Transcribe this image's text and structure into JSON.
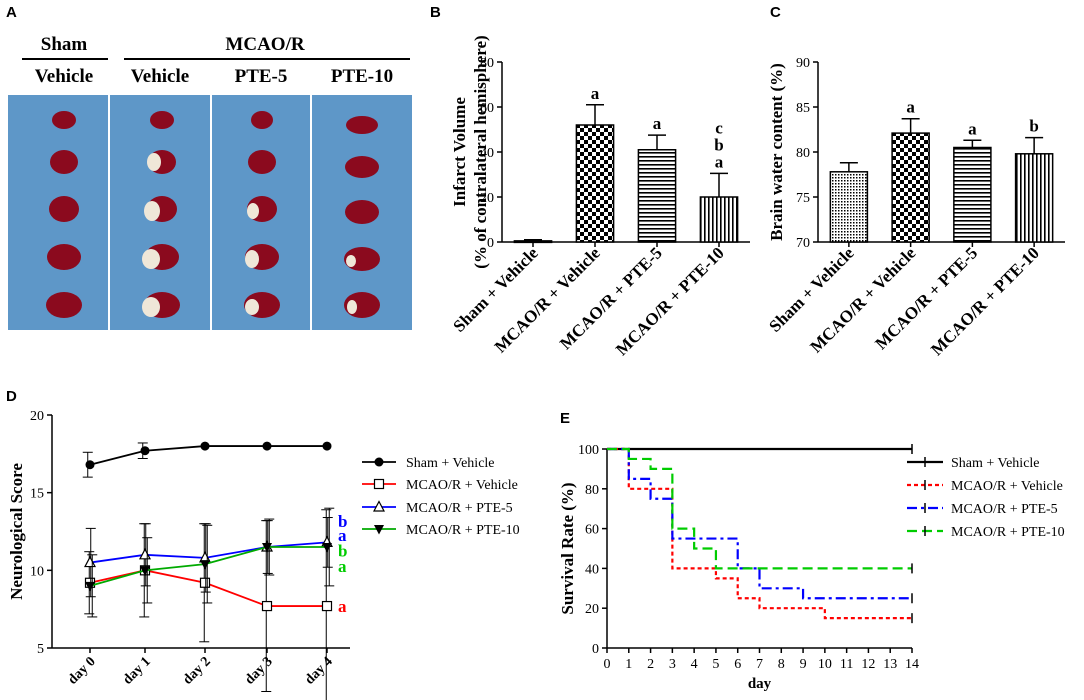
{
  "panel_labels": {
    "a": "A",
    "b": "B",
    "c": "C",
    "d": "D",
    "e": "E"
  },
  "panel_a": {
    "group_sham": "Sham",
    "group_mcao": "MCAO/R",
    "col_labels": [
      "Vehicle",
      "Vehicle",
      "PTE-5",
      "PTE-10"
    ]
  },
  "colors": {
    "black": "#000000",
    "red": "#ff0000",
    "blue": "#0000ff",
    "green": "#00cc00",
    "photo_bg": "#5e97c8",
    "brain": "#8b0a1e"
  },
  "chart_data": [
    {
      "id": "B",
      "type": "bar",
      "ylabel": "Infarct Volume",
      "ylabel2": "(% of contralateral hemisphere)",
      "categories": [
        "Sham + Vehicle",
        "MCAO/R + Vehicle",
        "MCAO/R + PTE-5",
        "MCAO/R + PTE-10"
      ],
      "values": [
        0.5,
        52,
        41,
        20
      ],
      "errors": [
        0.5,
        9,
        6.5,
        10.5
      ],
      "annotations": [
        "",
        "a",
        "a",
        "a b c"
      ],
      "ylim": [
        0,
        80
      ],
      "yticks": [
        0,
        20,
        40,
        60,
        80
      ]
    },
    {
      "id": "C",
      "type": "bar",
      "ylabel": "Brain water content (%)",
      "categories": [
        "Sham + Vehicle",
        "MCAO/R + Vehicle",
        "MCAO/R + PTE-5",
        "MCAO/R + PTE-10"
      ],
      "values": [
        77.8,
        82.1,
        80.5,
        79.8
      ],
      "errors": [
        1.0,
        1.6,
        0.8,
        1.8
      ],
      "annotations": [
        "",
        "a",
        "a",
        "b"
      ],
      "ylim": [
        70,
        90
      ],
      "yticks": [
        70,
        75,
        80,
        85,
        90
      ]
    },
    {
      "id": "D",
      "type": "line",
      "ylabel": "Neurological Score",
      "categories": [
        "day 0",
        "day 1",
        "day 2",
        "day 3",
        "day 4"
      ],
      "ylim": [
        5,
        20
      ],
      "yticks": [
        5,
        10,
        15,
        20
      ],
      "series": [
        {
          "name": "Sham + Vehicle",
          "color": "#000000",
          "marker": "circle",
          "values": [
            16.8,
            17.7,
            18,
            18,
            18
          ],
          "errors": [
            0.8,
            0.5,
            0,
            0,
            0
          ]
        },
        {
          "name": "MCAO/R + Vehicle",
          "color": "#ff0000",
          "marker": "square-open",
          "values": [
            9.2,
            10.0,
            9.2,
            7.7,
            7.7
          ],
          "errors": [
            2.0,
            3.0,
            3.8,
            5.5,
            6.2
          ]
        },
        {
          "name": "MCAO/R + PTE-5",
          "color": "#0000ff",
          "marker": "triangle-open",
          "values": [
            10.5,
            11.0,
            10.8,
            11.5,
            11.8
          ],
          "errors": [
            2.2,
            2.0,
            2.2,
            1.7,
            1.6
          ]
        },
        {
          "name": "MCAO/R + PTE-10",
          "color": "#00aa00",
          "marker": "triangle-down",
          "values": [
            9.0,
            10.0,
            10.4,
            11.5,
            11.5
          ],
          "errors": [
            2.0,
            2.1,
            2.5,
            1.8,
            2.5
          ]
        }
      ],
      "end_letters": [
        {
          "text": "a",
          "color": "#ff0000",
          "series": 1
        },
        {
          "text": "b",
          "color": "#0000ff",
          "series": 2,
          "line": 1
        },
        {
          "text": "a",
          "color": "#0000ff",
          "series": 2,
          "line": 2
        },
        {
          "text": "b",
          "color": "#00cc00",
          "series": 3,
          "line": 1
        },
        {
          "text": "a",
          "color": "#00cc00",
          "series": 3,
          "line": 2
        }
      ]
    },
    {
      "id": "E",
      "type": "line",
      "subtype": "survival-step",
      "xlabel": "day",
      "ylabel": "Survival Rate (%)",
      "xlim": [
        0,
        14
      ],
      "ylim": [
        0,
        100
      ],
      "xticks": [
        0,
        1,
        2,
        3,
        4,
        5,
        6,
        7,
        8,
        9,
        10,
        11,
        12,
        13,
        14
      ],
      "yticks": [
        0,
        20,
        40,
        60,
        80,
        100
      ],
      "series": [
        {
          "name": "Sham + Vehicle",
          "color": "#000000",
          "dash": "",
          "steps": [
            [
              0,
              100
            ],
            [
              14,
              100
            ]
          ]
        },
        {
          "name": "MCAO/R + Vehicle",
          "color": "#ff0000",
          "dash": "4,3",
          "steps": [
            [
              0,
              100
            ],
            [
              1,
              80
            ],
            [
              2,
              80
            ],
            [
              3,
              40
            ],
            [
              5,
              35
            ],
            [
              6,
              25
            ],
            [
              7,
              20
            ],
            [
              10,
              15
            ],
            [
              14,
              15
            ]
          ]
        },
        {
          "name": "MCAO/R + PTE-5",
          "color": "#0000ff",
          "dash": "10,4,3,4",
          "steps": [
            [
              0,
              100
            ],
            [
              1,
              85
            ],
            [
              2,
              75
            ],
            [
              3,
              55
            ],
            [
              6,
              40
            ],
            [
              7,
              30
            ],
            [
              9,
              25
            ],
            [
              14,
              25
            ]
          ]
        },
        {
          "name": "MCAO/R + PTE-10",
          "color": "#00cc00",
          "dash": "10,5",
          "steps": [
            [
              0,
              100
            ],
            [
              1,
              95
            ],
            [
              2,
              90
            ],
            [
              3,
              60
            ],
            [
              4,
              50
            ],
            [
              5,
              40
            ],
            [
              14,
              40
            ]
          ]
        }
      ]
    }
  ]
}
